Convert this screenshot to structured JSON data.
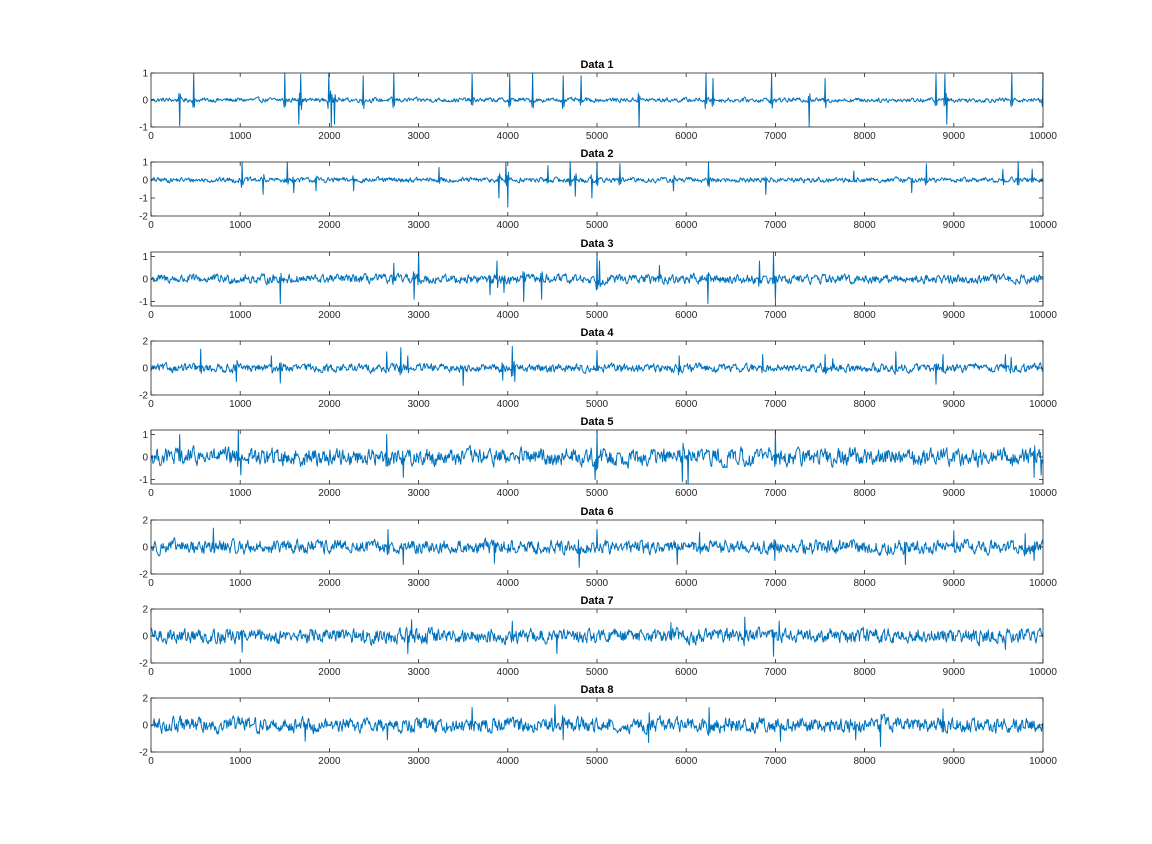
{
  "figure": {
    "background": "#ffffff"
  },
  "chart_data": [
    {
      "type": "line",
      "title": "Data 1",
      "xlim": [
        0,
        10000
      ],
      "ylim": [
        -1,
        1
      ],
      "xticks": [
        0,
        1000,
        2000,
        3000,
        4000,
        5000,
        6000,
        7000,
        8000,
        9000,
        10000
      ],
      "yticks": [
        -1,
        0,
        1
      ],
      "color": "#0072bd",
      "noise": 0.07,
      "spikes": [
        [
          320,
          -0.95
        ],
        [
          480,
          1.0
        ],
        [
          1500,
          1.0
        ],
        [
          1660,
          -0.9
        ],
        [
          1680,
          0.95
        ],
        [
          1990,
          1.0
        ],
        [
          2020,
          -1.0
        ],
        [
          2060,
          -0.9
        ],
        [
          2380,
          0.9
        ],
        [
          2720,
          1.0
        ],
        [
          3600,
          0.95
        ],
        [
          4020,
          0.95
        ],
        [
          4280,
          1.0
        ],
        [
          4620,
          0.9
        ],
        [
          4820,
          0.9
        ],
        [
          5470,
          -1.0
        ],
        [
          6220,
          1.0
        ],
        [
          6300,
          0.8
        ],
        [
          6960,
          1.0
        ],
        [
          7380,
          -1.0
        ],
        [
          7560,
          0.8
        ],
        [
          8800,
          0.95
        ],
        [
          8900,
          0.95
        ],
        [
          8920,
          -0.9
        ],
        [
          9650,
          1.0
        ],
        [
          10000,
          1.0
        ]
      ]
    },
    {
      "type": "line",
      "title": "Data 2",
      "xlim": [
        0,
        10000
      ],
      "ylim": [
        -2,
        1
      ],
      "xticks": [
        0,
        1000,
        2000,
        3000,
        4000,
        5000,
        6000,
        7000,
        8000,
        9000,
        10000
      ],
      "yticks": [
        -2,
        -1,
        0,
        1
      ],
      "color": "#0072bd",
      "noise": 0.12,
      "spikes": [
        [
          1020,
          1.0
        ],
        [
          1260,
          -0.8
        ],
        [
          1530,
          1.0
        ],
        [
          1600,
          -0.7
        ],
        [
          1850,
          -0.6
        ],
        [
          2270,
          -0.6
        ],
        [
          3230,
          0.7
        ],
        [
          3900,
          -1.0
        ],
        [
          3980,
          1.0
        ],
        [
          4000,
          -1.5
        ],
        [
          4450,
          0.8
        ],
        [
          4700,
          1.0
        ],
        [
          4760,
          -0.9
        ],
        [
          4940,
          -1.0
        ],
        [
          5000,
          1.0
        ],
        [
          5260,
          0.9
        ],
        [
          5860,
          -0.6
        ],
        [
          6250,
          1.0
        ],
        [
          6890,
          -0.8
        ],
        [
          7880,
          0.5
        ],
        [
          8530,
          -0.7
        ],
        [
          8690,
          0.9
        ],
        [
          9550,
          0.6
        ],
        [
          9720,
          1.0
        ],
        [
          9880,
          0.6
        ]
      ]
    },
    {
      "type": "line",
      "title": "Data 3",
      "xlim": [
        0,
        10000
      ],
      "ylim": [
        -1.2,
        1.2
      ],
      "xticks": [
        0,
        1000,
        2000,
        3000,
        4000,
        5000,
        6000,
        7000,
        8000,
        9000,
        10000
      ],
      "yticks": [
        -1,
        0,
        1
      ],
      "color": "#0072bd",
      "noise": 0.17,
      "spikes": [
        [
          1450,
          -1.1
        ],
        [
          2720,
          0.7
        ],
        [
          2950,
          -0.9
        ],
        [
          3000,
          1.2
        ],
        [
          3800,
          -0.7
        ],
        [
          3880,
          0.8
        ],
        [
          3960,
          -0.6
        ],
        [
          4180,
          -1.0
        ],
        [
          4380,
          -0.9
        ],
        [
          5000,
          1.2
        ],
        [
          5030,
          0.8
        ],
        [
          5700,
          0.6
        ],
        [
          6240,
          -1.1
        ],
        [
          6820,
          0.8
        ],
        [
          6980,
          1.2
        ],
        [
          7000,
          -1.0
        ]
      ]
    },
    {
      "type": "line",
      "title": "Data 4",
      "xlim": [
        0,
        10000
      ],
      "ylim": [
        -2,
        2
      ],
      "xticks": [
        0,
        1000,
        2000,
        3000,
        4000,
        5000,
        6000,
        7000,
        8000,
        9000,
        10000
      ],
      "yticks": [
        -2,
        0,
        2
      ],
      "color": "#0072bd",
      "noise": 0.26,
      "spikes": [
        [
          560,
          1.4
        ],
        [
          960,
          -1.0
        ],
        [
          1350,
          0.9
        ],
        [
          1450,
          -1.1
        ],
        [
          2640,
          1.2
        ],
        [
          2800,
          1.5
        ],
        [
          2880,
          0.9
        ],
        [
          3500,
          -1.3
        ],
        [
          3940,
          -0.9
        ],
        [
          4050,
          1.6
        ],
        [
          4080,
          -1.0
        ],
        [
          5000,
          1.3
        ],
        [
          5920,
          0.9
        ],
        [
          6860,
          1.0
        ],
        [
          7560,
          1.0
        ],
        [
          7640,
          0.7
        ],
        [
          8350,
          1.2
        ],
        [
          8800,
          -1.2
        ],
        [
          8880,
          1.0
        ],
        [
          9580,
          1.0
        ],
        [
          9640,
          0.8
        ]
      ]
    },
    {
      "type": "line",
      "title": "Data 5",
      "xlim": [
        0,
        10000
      ],
      "ylim": [
        -1.2,
        1.2
      ],
      "xticks": [
        0,
        1000,
        2000,
        3000,
        4000,
        5000,
        6000,
        7000,
        8000,
        9000,
        10000
      ],
      "yticks": [
        -1,
        0,
        1
      ],
      "color": "#0072bd",
      "noise": 0.32,
      "spikes": [
        [
          320,
          1.0
        ],
        [
          980,
          1.2
        ],
        [
          1010,
          -0.8
        ],
        [
          2640,
          1.0
        ],
        [
          2830,
          -0.9
        ],
        [
          4980,
          -1.0
        ],
        [
          5000,
          1.2
        ],
        [
          5960,
          -1.1
        ],
        [
          6020,
          -1.2
        ],
        [
          7000,
          1.2
        ],
        [
          9900,
          -0.9
        ],
        [
          9980,
          -0.8
        ]
      ]
    },
    {
      "type": "line",
      "title": "Data 6",
      "xlim": [
        0,
        10000
      ],
      "ylim": [
        -2,
        2
      ],
      "xticks": [
        0,
        1000,
        2000,
        3000,
        4000,
        5000,
        6000,
        7000,
        8000,
        9000,
        10000
      ],
      "yticks": [
        -2,
        0,
        2
      ],
      "color": "#0072bd",
      "noise": 0.42,
      "spikes": [
        [
          700,
          1.4
        ],
        [
          2660,
          1.3
        ],
        [
          2830,
          -1.3
        ],
        [
          3850,
          -1.2
        ],
        [
          4800,
          -1.5
        ],
        [
          5000,
          1.3
        ],
        [
          5900,
          -1.3
        ],
        [
          6150,
          1.1
        ],
        [
          6990,
          -1.0
        ],
        [
          8460,
          -1.3
        ],
        [
          9000,
          1.2
        ],
        [
          9800,
          1.0
        ],
        [
          9900,
          -1.0
        ]
      ]
    },
    {
      "type": "line",
      "title": "Data 7",
      "xlim": [
        0,
        10000
      ],
      "ylim": [
        -2,
        2
      ],
      "xticks": [
        0,
        1000,
        2000,
        3000,
        4000,
        5000,
        6000,
        7000,
        8000,
        9000,
        10000
      ],
      "yticks": [
        -2,
        0,
        2
      ],
      "color": "#0072bd",
      "noise": 0.45,
      "spikes": [
        [
          1020,
          -1.2
        ],
        [
          2880,
          -1.3
        ],
        [
          2920,
          1.2
        ],
        [
          4050,
          1.1
        ],
        [
          4550,
          -1.3
        ],
        [
          5830,
          1.0
        ],
        [
          6660,
          1.4
        ],
        [
          6980,
          -1.5
        ],
        [
          7040,
          1.1
        ],
        [
          9580,
          -1.0
        ]
      ]
    },
    {
      "type": "line",
      "title": "Data 8",
      "xlim": [
        0,
        10000
      ],
      "ylim": [
        -2,
        2
      ],
      "xticks": [
        0,
        1000,
        2000,
        3000,
        4000,
        5000,
        6000,
        7000,
        8000,
        9000,
        10000
      ],
      "yticks": [
        -2,
        0,
        2
      ],
      "color": "#0072bd",
      "noise": 0.46,
      "spikes": [
        [
          1730,
          -1.2
        ],
        [
          2650,
          -1.1
        ],
        [
          3600,
          1.3
        ],
        [
          4530,
          1.5
        ],
        [
          4620,
          -1.1
        ],
        [
          5580,
          -1.3
        ],
        [
          6260,
          1.3
        ],
        [
          7060,
          -1.2
        ],
        [
          7900,
          -1.1
        ],
        [
          8180,
          -1.6
        ],
        [
          8880,
          1.2
        ]
      ]
    }
  ]
}
